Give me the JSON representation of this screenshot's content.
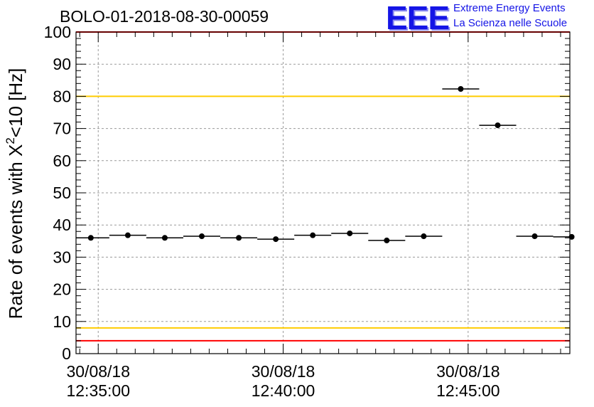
{
  "title": "BOLO-01-2018-08-30-00059",
  "logo": {
    "mark": "EEE",
    "line1": "Extreme Energy Events",
    "line2": "La Scienza nelle Scuole",
    "color": "#1515e6"
  },
  "chart_data": {
    "type": "scatter",
    "ylabel_prefix": "Rate of events with ",
    "ylabel_symbol": "X",
    "ylabel_sup": "2",
    "ylabel_suffix": "<10 [Hz]",
    "ylim": [
      0,
      100
    ],
    "yticks": [
      0,
      10,
      20,
      30,
      40,
      50,
      60,
      70,
      80,
      90,
      100
    ],
    "xlim_minutes": [
      -0.6,
      12.75
    ],
    "xticks": [
      {
        "minute": 0,
        "date": "30/08/18",
        "time": "12:35:00"
      },
      {
        "minute": 5,
        "date": "30/08/18",
        "time": "12:40:00"
      },
      {
        "minute": 10,
        "date": "30/08/18",
        "time": "12:45:00"
      }
    ],
    "grid": true,
    "bin_width_minutes": 1.0,
    "points": [
      {
        "x": -0.2,
        "y": 36.0
      },
      {
        "x": 0.8,
        "y": 36.8
      },
      {
        "x": 1.8,
        "y": 36.0
      },
      {
        "x": 2.8,
        "y": 36.5
      },
      {
        "x": 3.8,
        "y": 36.0
      },
      {
        "x": 4.8,
        "y": 35.6
      },
      {
        "x": 5.8,
        "y": 36.8
      },
      {
        "x": 6.8,
        "y": 37.4
      },
      {
        "x": 7.8,
        "y": 35.2
      },
      {
        "x": 8.8,
        "y": 36.5
      },
      {
        "x": 9.8,
        "y": 82.3
      },
      {
        "x": 10.8,
        "y": 71.0
      },
      {
        "x": 11.8,
        "y": 36.5
      },
      {
        "x": 12.8,
        "y": 36.3
      }
    ],
    "reference_lines": [
      {
        "y": 100,
        "color": "#ff0000"
      },
      {
        "y": 80,
        "color": "#ffcc00"
      },
      {
        "y": 8,
        "color": "#ffcc00"
      },
      {
        "y": 4,
        "color": "#ff0000"
      }
    ]
  }
}
